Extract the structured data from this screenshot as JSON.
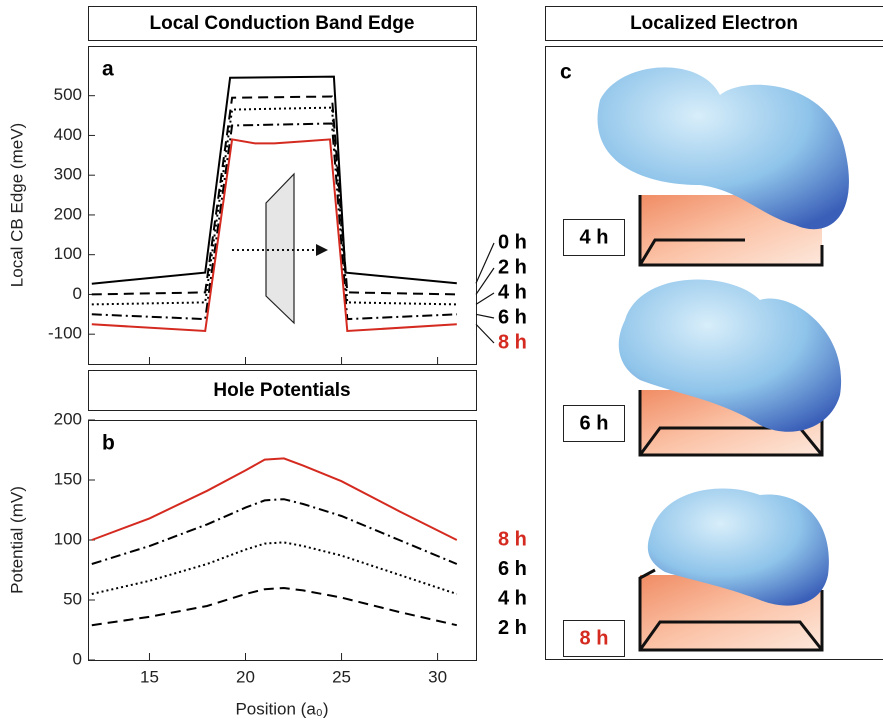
{
  "chart_data": [
    {
      "type": "line",
      "title": "Local Conduction Band Edge",
      "panel_label": "a",
      "ylabel": "Local CB Edge (meV)",
      "xlim": [
        11.8,
        32
      ],
      "xticks": [
        15,
        20,
        25,
        30
      ],
      "ylim": [
        -175,
        625
      ],
      "yticks": [
        -100,
        0,
        100,
        200,
        300,
        400,
        500
      ],
      "show_xtick_labels": false,
      "series": [
        {
          "name": "0 h",
          "color": "#000000",
          "dash": "solid",
          "x": [
            12,
            17.9,
            19.2,
            24.6,
            25.2,
            31
          ],
          "values": [
            27,
            55,
            545,
            548,
            55,
            28
          ]
        },
        {
          "name": "2 h",
          "color": "#000000",
          "dash": "dashed",
          "x": [
            12,
            17.9,
            19.3,
            24.5,
            25.3,
            31
          ],
          "values": [
            0,
            5,
            495,
            498,
            5,
            0
          ]
        },
        {
          "name": "4 h",
          "color": "#000000",
          "dash": "dotted",
          "x": [
            12,
            17.9,
            19.3,
            24.5,
            25.3,
            31
          ],
          "values": [
            -25,
            -20,
            465,
            470,
            -20,
            -25
          ]
        },
        {
          "name": "6 h",
          "color": "#000000",
          "dash": "dashdot",
          "x": [
            12,
            17.9,
            19.3,
            24.5,
            25.3,
            31
          ],
          "values": [
            -50,
            -62,
            425,
            430,
            -62,
            -50
          ]
        },
        {
          "name": "8 h",
          "color": "#d42a20",
          "dash": "solid",
          "x": [
            12,
            17.9,
            19.3,
            20.5,
            21.5,
            23,
            24.4,
            25.3,
            31
          ],
          "values": [
            -75,
            -92,
            390,
            380,
            380,
            385,
            390,
            -92,
            -75
          ]
        }
      ]
    },
    {
      "type": "line",
      "title": "Hole Potentials",
      "panel_label": "b",
      "ylabel": "Potential (mV)",
      "xlabel": "Position (a₀)",
      "xlim": [
        11.8,
        32
      ],
      "xticks": [
        15,
        20,
        25,
        30
      ],
      "ylim": [
        0,
        200
      ],
      "yticks": [
        0,
        50,
        100,
        150,
        200
      ],
      "show_xtick_labels": true,
      "series": [
        {
          "name": "8 h",
          "color": "#d42a20",
          "dash": "solid",
          "x": [
            12,
            15,
            18,
            20,
            21,
            22,
            23,
            25,
            28,
            31
          ],
          "values": [
            100,
            118,
            141,
            158,
            167,
            168,
            162,
            149,
            124,
            100
          ]
        },
        {
          "name": "6 h",
          "color": "#000000",
          "dash": "dashdot",
          "x": [
            12,
            15,
            18,
            20,
            21,
            22,
            23,
            25,
            28,
            31
          ],
          "values": [
            80,
            95,
            113,
            127,
            133,
            134,
            130,
            120,
            100,
            80
          ]
        },
        {
          "name": "4 h",
          "color": "#000000",
          "dash": "dotted",
          "x": [
            12,
            15,
            18,
            20,
            21,
            22,
            23,
            25,
            28,
            31
          ],
          "values": [
            55,
            66,
            80,
            92,
            97,
            98,
            95,
            87,
            71,
            55
          ]
        },
        {
          "name": "2 h",
          "color": "#000000",
          "dash": "dashed",
          "x": [
            12,
            15,
            18,
            20,
            21,
            22,
            23,
            25,
            28,
            31
          ],
          "values": [
            29,
            36,
            45,
            55,
            59,
            60,
            58,
            52,
            40,
            29
          ]
        }
      ]
    }
  ],
  "image_panel": {
    "title": "Localized Electron",
    "panel_label": "c",
    "labels": [
      "4 h",
      "6 h",
      "8 h"
    ]
  }
}
